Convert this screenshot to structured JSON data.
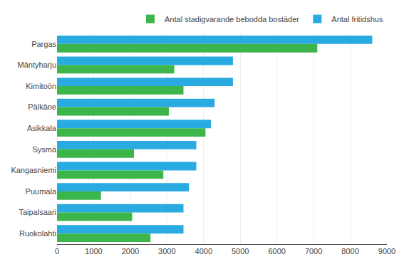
{
  "chart_data": {
    "type": "bar",
    "orientation": "horizontal",
    "categories": [
      "Pargas",
      "Mäntyharju",
      "Kimitoön",
      "Pälkäne",
      "Asikkala",
      "Sysmä",
      "Kangasniemi",
      "Puumala",
      "Taipalsaari",
      "Ruokolahti"
    ],
    "series": [
      {
        "name": "Antal fritidshus",
        "color": "#29ABE2",
        "values": [
          8600,
          4800,
          4800,
          4300,
          4200,
          3800,
          3800,
          3600,
          3450,
          3450
        ]
      },
      {
        "name": "Antal stadigvarande bebodda bostäder",
        "color": "#3CB54A",
        "values": [
          7100,
          3200,
          3450,
          3050,
          4050,
          2100,
          2900,
          1200,
          2050,
          2550
        ]
      }
    ],
    "xlim": [
      0,
      9000
    ],
    "xticks": [
      0,
      1000,
      2000,
      3000,
      4000,
      5000,
      6000,
      7000,
      8000,
      9000
    ],
    "grid": true,
    "legend": "top"
  }
}
